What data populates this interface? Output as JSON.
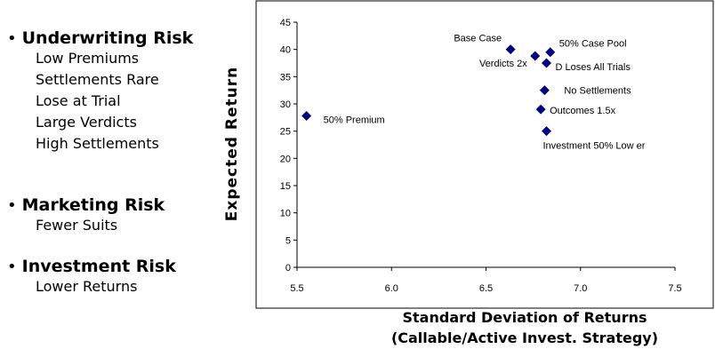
{
  "risks": {
    "underwriting": {
      "title": "Underwriting Risk",
      "items": [
        "Low Premiums",
        "Settlements Rare",
        "Lose at Trial",
        "Large Verdicts",
        "High Settlements"
      ]
    },
    "marketing": {
      "title": "Marketing Risk",
      "items": [
        "Fewer Suits"
      ]
    },
    "investment": {
      "title": "Investment Risk",
      "items": [
        "Lower Returns"
      ]
    },
    "bullet": "•"
  },
  "chart_data": {
    "type": "scatter",
    "title": "",
    "xlabel_line1": "Standard Deviation of Returns",
    "xlabel_line2": "(Callable/Active Invest. Strategy)",
    "ylabel": "Expected Return",
    "xlim": [
      5.5,
      7.5
    ],
    "ylim": [
      0,
      45
    ],
    "xticks": [
      "5.5",
      "6.0",
      "6.5",
      "7.0",
      "7.5"
    ],
    "yticks": [
      "0",
      "5",
      "10",
      "15",
      "20",
      "25",
      "30",
      "35",
      "40",
      "45"
    ],
    "grid": false,
    "marker_color": "#000080",
    "points": [
      {
        "label": "Base Case",
        "x": 6.63,
        "y": 40.0
      },
      {
        "label": "50% Case Pool",
        "x": 6.84,
        "y": 39.5
      },
      {
        "label": "Verdicts 2x",
        "x": 6.76,
        "y": 38.8
      },
      {
        "label": "D Loses All Trials",
        "x": 6.82,
        "y": 37.5
      },
      {
        "label": "No Settlements",
        "x": 6.81,
        "y": 32.5
      },
      {
        "label": "Outcomes 1.5x",
        "x": 6.79,
        "y": 29.0
      },
      {
        "label": "50% Premium",
        "x": 5.55,
        "y": 27.8
      },
      {
        "label": "Investment 50% Low er",
        "x": 6.82,
        "y": 25.0
      }
    ]
  }
}
